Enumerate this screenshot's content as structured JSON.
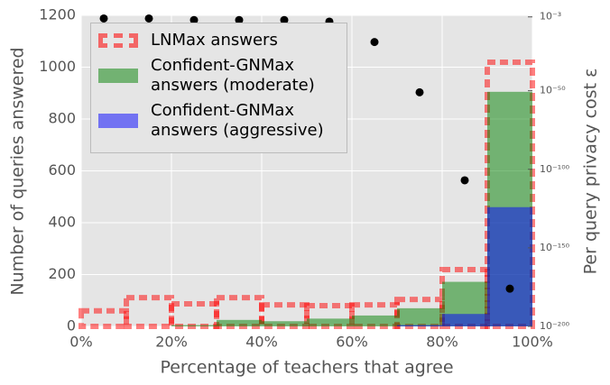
{
  "chart_data": {
    "type": "histogram",
    "xlabel": "Percentage of teachers that agree",
    "ylabel": "Number of queries answered",
    "y2label": "Per query privacy cost ε",
    "bins": [
      0,
      10,
      20,
      30,
      40,
      50,
      60,
      70,
      80,
      90,
      100
    ],
    "xlim": [
      0,
      100
    ],
    "xticks": [
      {
        "value": 0,
        "label": "0%"
      },
      {
        "value": 20,
        "label": "20%"
      },
      {
        "value": 40,
        "label": "40%"
      },
      {
        "value": 60,
        "label": "60%"
      },
      {
        "value": 80,
        "label": "80%"
      },
      {
        "value": 100,
        "label": "100%"
      }
    ],
    "ylim": [
      0,
      1200
    ],
    "yticks": [
      0,
      200,
      400,
      600,
      800,
      1000,
      1200
    ],
    "y2lim": [
      1e-200,
      0.01
    ],
    "y2scale": "log",
    "y2ticks": [
      {
        "value": 0.001,
        "label": "10⁻³"
      },
      {
        "value": 1e-50,
        "label": "10⁻⁵⁰"
      },
      {
        "value": 1e-100,
        "label": "10⁻¹⁰⁰"
      },
      {
        "value": 1e-150,
        "label": "10⁻¹⁵⁰"
      },
      {
        "value": 1e-200,
        "label": "10⁻²⁰⁰"
      }
    ],
    "grid": true,
    "series": [
      {
        "name": "LNMax answers",
        "style": "dashed-outline",
        "color": "#ff0000",
        "values": [
          60,
          111,
          87,
          111,
          83,
          80,
          83,
          104,
          219,
          1019
        ]
      },
      {
        "name": "Confident-GNMax\nanswers (moderate)",
        "style": "filled",
        "color": "#008000",
        "values": [
          0,
          0,
          5,
          25,
          20,
          30,
          42,
          70,
          172,
          905
        ]
      },
      {
        "name": "Confident-GNMax\nanswers (aggressive)",
        "style": "filled",
        "color": "#0000ff",
        "values": [
          0,
          0,
          0,
          0,
          0,
          0,
          0,
          5,
          48,
          460
        ]
      },
      {
        "type": "scatter",
        "axis": "y2",
        "color": "#000000",
        "x": [
          5,
          15,
          25,
          35,
          45,
          55,
          65,
          75,
          85,
          95
        ],
        "values": [
          0.0001,
          0.0001,
          1e-05,
          1e-05,
          1e-05,
          1e-06,
          1e-19,
          1e-51,
          1e-107,
          1e-176
        ]
      }
    ]
  }
}
